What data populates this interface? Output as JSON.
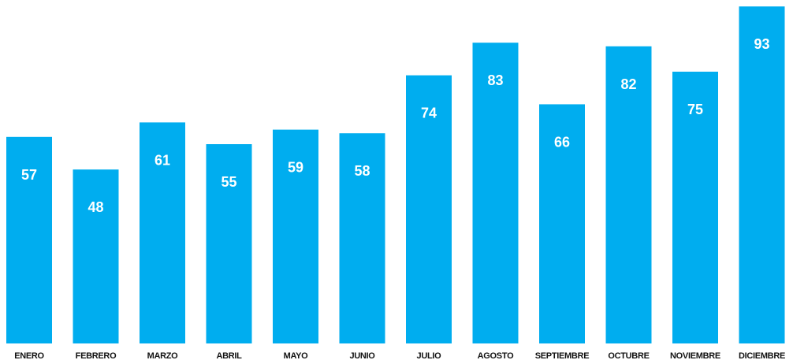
{
  "chart_data": {
    "type": "bar",
    "title": "",
    "xlabel": "",
    "ylabel": "",
    "categories": [
      "ENERO",
      "FEBRERO",
      "MARZO",
      "ABRIL",
      "MAYO",
      "JUNIO",
      "JULIO",
      "AGOSTO",
      "SEPTIEMBRE",
      "OCTUBRE",
      "NOVIEMBRE",
      "DICIEMBRE"
    ],
    "values": [
      57,
      48,
      61,
      55,
      59,
      58,
      74,
      83,
      66,
      82,
      75,
      93
    ],
    "ylim": [
      0,
      100
    ],
    "grid": false,
    "legend": "none",
    "bar_color": "#00adef",
    "value_label_color": "#ffffff",
    "category_label_color": "#111111"
  }
}
